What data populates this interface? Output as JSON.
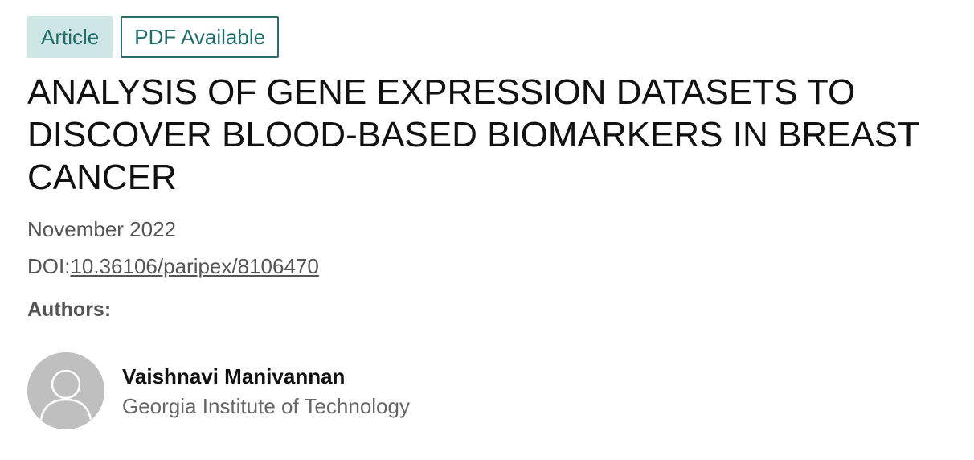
{
  "badges": {
    "article": "Article",
    "pdf": "PDF Available"
  },
  "publication": {
    "title": "ANALYSIS OF GENE EXPRESSION DATASETS TO DISCOVER BLOOD-BASED BIOMARKERS IN BREAST CANCER",
    "date": "November 2022",
    "doi_prefix": "DOI:",
    "doi": "10.36106/paripex/8106470"
  },
  "authors": {
    "label": "Authors:",
    "list": [
      {
        "name": "Vaishnavi Manivannan",
        "affiliation": "Georgia Institute of Technology",
        "avatar_icon": "default-user-avatar-icon"
      }
    ]
  },
  "colors": {
    "accent": "#2a6f6c",
    "badge_fill": "#cfe6e6",
    "avatar_bg": "#bfbfbf"
  }
}
